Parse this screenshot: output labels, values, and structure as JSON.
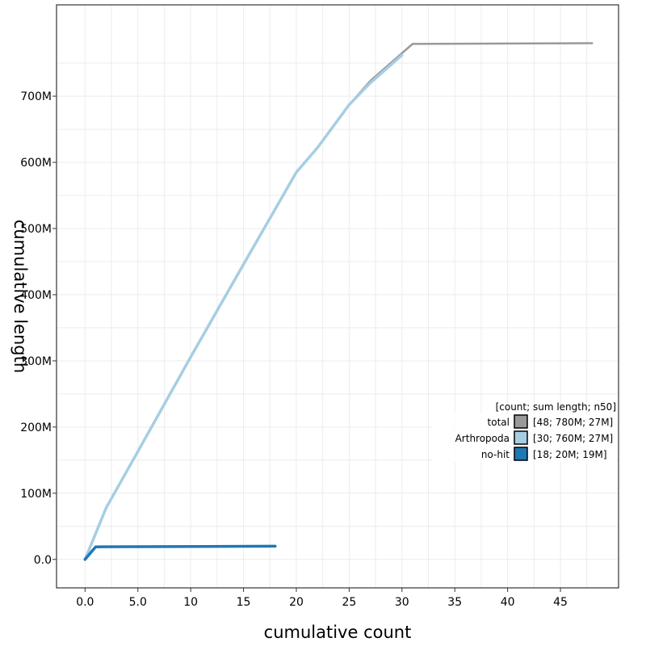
{
  "chart_data": {
    "type": "line",
    "xlabel": "cumulative count",
    "ylabel": "cumulative length",
    "xlim": [
      -2.7,
      50.5
    ],
    "ylim": [
      -43,
      838
    ],
    "xticks": [
      0,
      5,
      10,
      15,
      20,
      25,
      30,
      35,
      40,
      45
    ],
    "xtick_labels": [
      "0.0",
      "5.0",
      "10",
      "15",
      "20",
      "25",
      "30",
      "35",
      "40",
      "45"
    ],
    "yticks": [
      0,
      100,
      200,
      300,
      400,
      500,
      600,
      700
    ],
    "ytick_labels": [
      "0.0",
      "100M",
      "200M",
      "300M",
      "400M",
      "500M",
      "600M",
      "700M"
    ],
    "y_unit": "M",
    "grid": true,
    "legend": {
      "position": "right",
      "title": "[count; sum length; n50]"
    },
    "series": [
      {
        "name": "total",
        "stats": "[48; 780M; 27M]",
        "color": "#999999",
        "x": [
          0,
          2,
          5,
          10,
          15,
          20,
          22,
          25,
          27,
          29,
          31,
          48
        ],
        "y": [
          0,
          78,
          163,
          306,
          446,
          585,
          622,
          687,
          723,
          751,
          779,
          780
        ]
      },
      {
        "name": "Arthropoda",
        "stats": "[30; 760M; 27M]",
        "color": "#a6cee3",
        "x": [
          0,
          2,
          5,
          10,
          15,
          20,
          22,
          25,
          27,
          30
        ],
        "y": [
          0,
          78,
          163,
          306,
          446,
          585,
          622,
          687,
          720,
          762
        ]
      },
      {
        "name": "no-hit",
        "stats": "[18; 20M; 19M]",
        "color": "#1f78b4",
        "x": [
          0,
          1,
          18
        ],
        "y": [
          0,
          19,
          20
        ]
      }
    ]
  }
}
